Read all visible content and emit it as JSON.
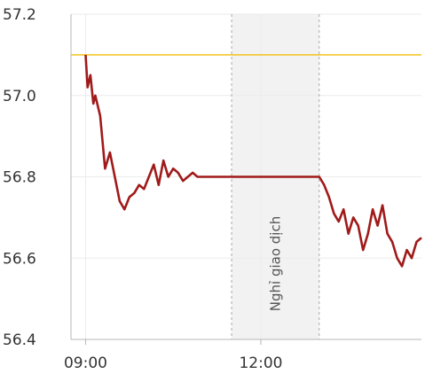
{
  "chart_data": {
    "type": "line",
    "title": "",
    "xlabel": "",
    "ylabel": "",
    "ylim": [
      56.4,
      57.2
    ],
    "y_ticks": [
      "56.4",
      "56.6",
      "56.8",
      "57.0",
      "57.2"
    ],
    "x_ticks": [
      "09:00",
      "12:00"
    ],
    "grid": true,
    "reference_line": {
      "value": 57.1,
      "color": "#f2c318"
    },
    "break_band": {
      "label": "Nghỉ giao dịch",
      "from": "11:30",
      "to": "13:00"
    },
    "series": [
      {
        "color": "#a01a1a",
        "x": [
          "09:00",
          "09:02",
          "09:05",
          "09:08",
          "09:10",
          "09:15",
          "09:20",
          "09:25",
          "09:30",
          "09:35",
          "09:40",
          "09:45",
          "09:50",
          "09:55",
          "10:00",
          "10:05",
          "10:10",
          "10:15",
          "10:20",
          "10:25",
          "10:30",
          "10:35",
          "10:40",
          "10:45",
          "10:50",
          "10:55",
          "11:00",
          "11:05",
          "11:10",
          "11:15",
          "11:20",
          "11:25",
          "11:30",
          "13:00",
          "13:05",
          "13:10",
          "13:15",
          "13:20",
          "13:25",
          "13:30",
          "13:35",
          "13:40",
          "13:45",
          "13:50",
          "13:55",
          "14:00",
          "14:05",
          "14:10",
          "14:15",
          "14:20",
          "14:25",
          "14:30",
          "14:35",
          "14:40",
          "14:45"
        ],
        "values": [
          57.1,
          57.02,
          57.05,
          56.98,
          57.0,
          56.95,
          56.82,
          56.86,
          56.8,
          56.74,
          56.72,
          56.75,
          56.76,
          56.78,
          56.77,
          56.8,
          56.83,
          56.78,
          56.84,
          56.8,
          56.82,
          56.81,
          56.79,
          56.8,
          56.81,
          56.8,
          56.8,
          56.8,
          56.8,
          56.8,
          56.8,
          56.8,
          56.8,
          56.8,
          56.78,
          56.75,
          56.71,
          56.69,
          56.72,
          56.66,
          56.7,
          56.68,
          56.62,
          56.66,
          56.72,
          56.68,
          56.73,
          56.66,
          56.64,
          56.6,
          56.58,
          56.62,
          56.6,
          56.64,
          56.65
        ]
      }
    ]
  }
}
